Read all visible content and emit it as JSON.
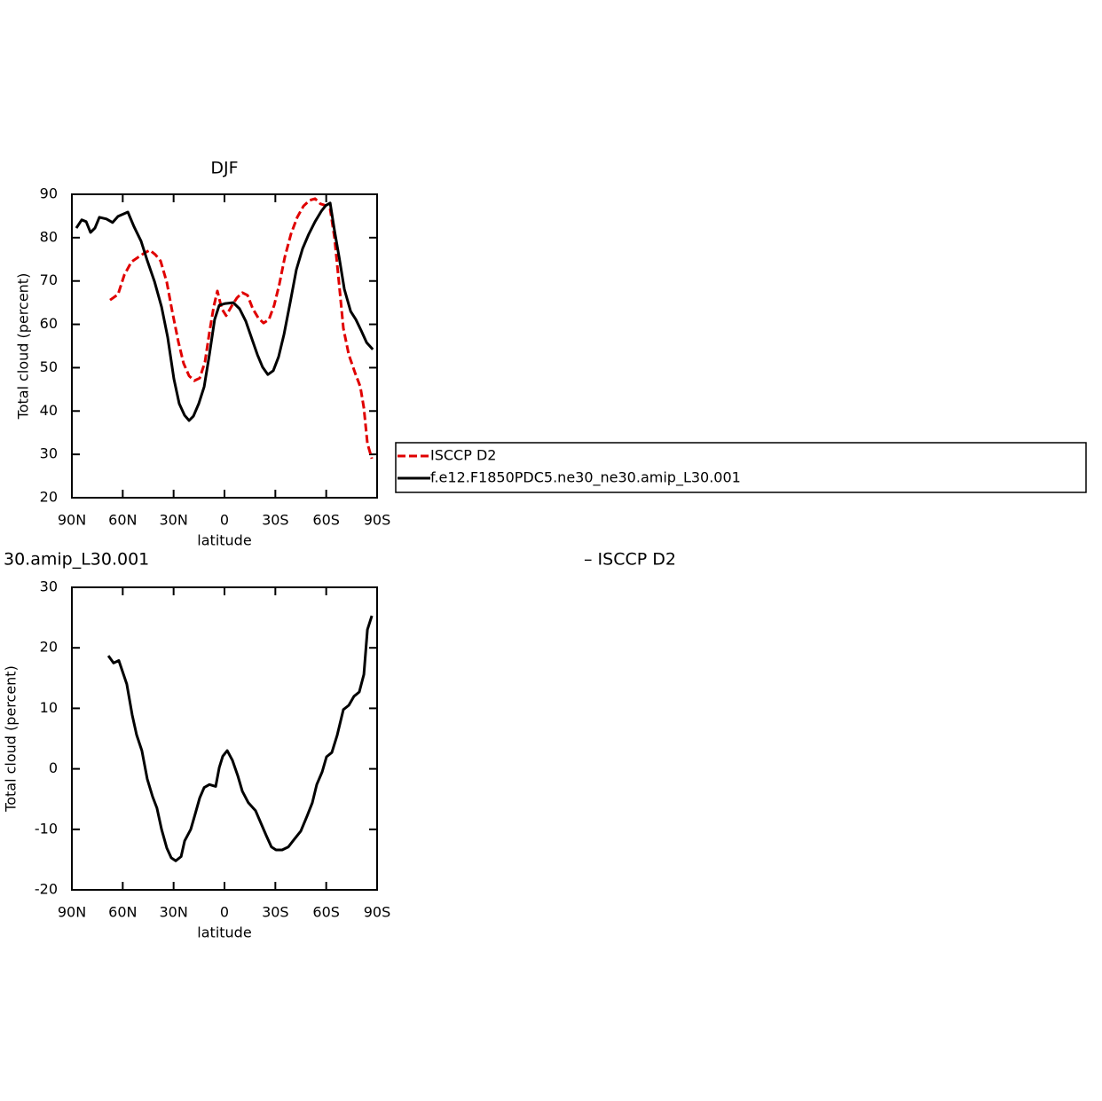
{
  "chart_data": [
    {
      "type": "line",
      "title": "DJF",
      "xlabel": "latitude",
      "ylabel": "Total cloud (percent)",
      "xlim": [
        90,
        -90
      ],
      "xticks": [
        {
          "value": 90,
          "label": "90N"
        },
        {
          "value": 60,
          "label": "60N"
        },
        {
          "value": 30,
          "label": "30N"
        },
        0,
        {
          "value": -30,
          "label": "30S"
        },
        {
          "value": -60,
          "label": "60S"
        },
        {
          "value": -90,
          "label": "90S"
        }
      ],
      "ylim": [
        20,
        90
      ],
      "yticks": [
        20,
        30,
        40,
        50,
        60,
        70,
        80,
        90
      ],
      "series": [
        {
          "name": "ISCCP D2",
          "color": "#e00000",
          "line_style": "dashed",
          "x": [
            67.5,
            62.8,
            59.1,
            54.9,
            50.8,
            47.1,
            44,
            40.8,
            37.7,
            34,
            30.9,
            27.2,
            24.1,
            20.9,
            17.8,
            14.6,
            11.5,
            8.9,
            6.3,
            4.2,
            1.6,
            -1,
            -4.2,
            -7.3,
            -10.5,
            -13.6,
            -16.7,
            -19.9,
            -23,
            -26.2,
            -29.3,
            -32.4,
            -35.6,
            -39.2,
            -42.9,
            -46.6,
            -50.2,
            -53.4,
            -56.5,
            -59.7,
            -62.3,
            -64.9,
            -67.6,
            -70.1,
            -73.3,
            -76.9,
            -80.1,
            -82.2,
            -84.3,
            -86.9
          ],
          "values": [
            65.6,
            66.9,
            71.4,
            74.4,
            75.5,
            76.5,
            77.1,
            76.1,
            74.6,
            69.7,
            63.2,
            56,
            51,
            48.1,
            47,
            47.6,
            51.3,
            58.1,
            64.2,
            67.7,
            63.6,
            62,
            64.2,
            66.1,
            67.3,
            66.7,
            63.6,
            61.5,
            60.3,
            61.1,
            64.4,
            69.3,
            75.5,
            80.8,
            84.7,
            87.3,
            88.6,
            89,
            87.8,
            87.4,
            86.6,
            80,
            69.3,
            59.1,
            53,
            48.9,
            45.6,
            40.7,
            32.5,
            29
          ]
        },
        {
          "name": "f.e12.F1850PDC5.ne30_ne30.amip_L30.001",
          "color": "#000000",
          "line_style": "solid",
          "x": [
            87.4,
            84.2,
            81.6,
            79,
            76.4,
            73.8,
            69.6,
            66,
            62.8,
            57,
            53.4,
            49.2,
            45.5,
            41.3,
            37.1,
            33.5,
            29.8,
            26.7,
            23.5,
            20.9,
            18.3,
            15.2,
            12,
            8.9,
            5.8,
            3.1,
            -0.5,
            -5.2,
            -8.9,
            -12.6,
            -16.2,
            -19.4,
            -22.5,
            -25.6,
            -28.8,
            -31.9,
            -35.1,
            -38.8,
            -42.4,
            -46.1,
            -49.7,
            -53.4,
            -57.1,
            -59.7,
            -62.3,
            -64.9,
            -67.6,
            -70.7,
            -74.4,
            -77.5,
            -80.7,
            -83.8,
            -87.5
          ],
          "values": [
            82.2,
            84.1,
            83.7,
            81.2,
            82.2,
            84.7,
            84.3,
            83.5,
            84.9,
            85.9,
            82.6,
            79.2,
            74.7,
            69.9,
            64,
            57,
            47.4,
            41.7,
            39,
            37.8,
            38.8,
            41.7,
            45.6,
            53,
            61.1,
            64.4,
            64.8,
            65,
            63.6,
            60.7,
            56.6,
            53,
            50.1,
            48.4,
            49.3,
            52.5,
            57.7,
            65.2,
            72.6,
            77.5,
            80.8,
            83.7,
            86.1,
            87.4,
            88,
            81.6,
            75.5,
            68.1,
            63,
            61.1,
            58.5,
            55.8,
            54.2
          ]
        }
      ]
    },
    {
      "type": "line",
      "title": "30.amip_L30.001",
      "title_right": "– ISCCP D2",
      "xlabel": "latitude",
      "ylabel": "Total cloud (percent)",
      "xlim": [
        90,
        -90
      ],
      "xticks": [
        {
          "value": 90,
          "label": "90N"
        },
        {
          "value": 60,
          "label": "60N"
        },
        {
          "value": 30,
          "label": "30N"
        },
        0,
        {
          "value": -30,
          "label": "30S"
        },
        {
          "value": -60,
          "label": "60S"
        },
        {
          "value": -90,
          "label": "90S"
        }
      ],
      "ylim": [
        -20,
        30
      ],
      "yticks": [
        -20,
        -10,
        0,
        10,
        20,
        30
      ],
      "color": "#000000",
      "x": [
        68.5,
        65.4,
        62.3,
        57.6,
        54.4,
        51.8,
        48.7,
        45.5,
        42.4,
        39.8,
        37.1,
        34,
        31.4,
        28.8,
        25.6,
        23.5,
        19.9,
        17.3,
        14.6,
        12,
        8.9,
        5.2,
        3.1,
        1,
        -1.6,
        -4.7,
        -7.8,
        -10.5,
        -14.1,
        -18.3,
        -22,
        -24.6,
        -27.7,
        -30.4,
        -34,
        -37.7,
        -41.3,
        -45,
        -48.7,
        -51.8,
        -54.4,
        -57.6,
        -60.2,
        -63.3,
        -66.5,
        -70.1,
        -73.3,
        -76.4,
        -79.5,
        -82.2,
        -84.3,
        -86.9
      ],
      "values": [
        18.7,
        17.5,
        17.9,
        14,
        8.9,
        5.6,
        3,
        -1.7,
        -4.6,
        -6.5,
        -10,
        -13.1,
        -14.7,
        -15.2,
        -14.5,
        -11.9,
        -10,
        -7.5,
        -4.8,
        -3.1,
        -2.6,
        -2.9,
        0.2,
        2.1,
        3,
        1.4,
        -1.1,
        -3.7,
        -5.6,
        -6.9,
        -9.3,
        -11,
        -12.9,
        -13.4,
        -13.4,
        -12.9,
        -11.6,
        -10.3,
        -7.8,
        -5.6,
        -2.6,
        -0.5,
        2,
        2.7,
        5.6,
        9.8,
        10.5,
        12,
        12.7,
        15.6,
        23,
        25.3
      ]
    }
  ]
}
